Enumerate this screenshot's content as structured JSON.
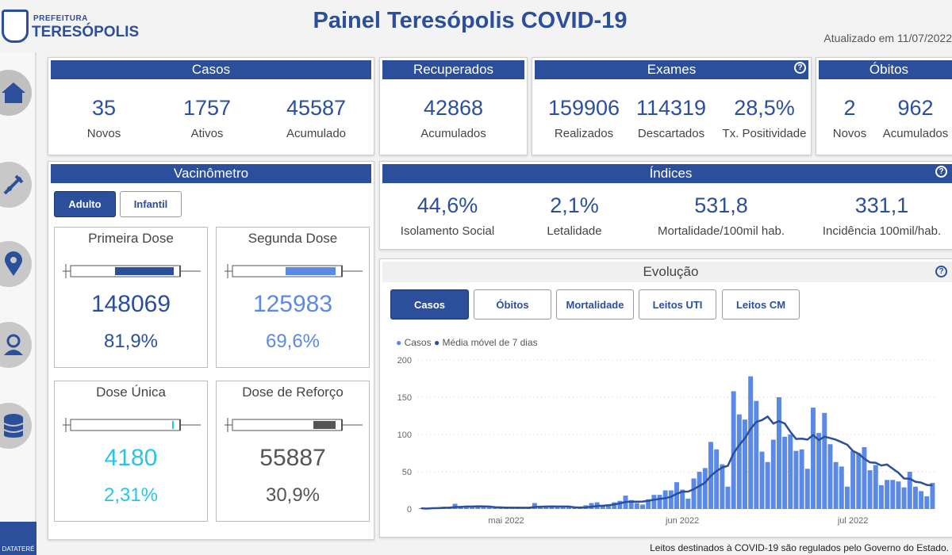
{
  "header": {
    "logo_top": "PREFEITURA",
    "logo_bottom": "TERESÓPOLIS",
    "title": "Painel Teresópolis COVID-19",
    "updated": "Atualizado em 11/07/2022"
  },
  "sidebar": {
    "items": [
      "home",
      "vaccine",
      "map",
      "attendant",
      "database"
    ],
    "footer_logo": "DATATERÉ"
  },
  "casos": {
    "title": "Casos",
    "stats": [
      {
        "value": "35",
        "label": "Novos"
      },
      {
        "value": "1757",
        "label": "Ativos"
      },
      {
        "value": "45587",
        "label": "Acumulado"
      }
    ]
  },
  "recuperados": {
    "title": "Recuperados",
    "stats": [
      {
        "value": "42868",
        "label": "Acumulados"
      }
    ]
  },
  "exames": {
    "title": "Exames",
    "help": "?",
    "stats": [
      {
        "value": "159906",
        "label": "Realizados"
      },
      {
        "value": "114319",
        "label": "Descartados"
      },
      {
        "value": "28,5%",
        "label": "Tx. Positividade"
      }
    ]
  },
  "obitos": {
    "title": "Óbitos",
    "stats": [
      {
        "value": "2",
        "label": "Novos"
      },
      {
        "value": "962",
        "label": "Acumulados"
      }
    ]
  },
  "vacinometro": {
    "title": "Vacinômetro",
    "tabs": [
      "Adulto",
      "Infantil"
    ],
    "doses": [
      {
        "title": "Primeira Dose",
        "value": "148069",
        "pct": "81,9%",
        "color": "#2b4f9b",
        "fill": 0.819
      },
      {
        "title": "Segunda Dose",
        "value": "125983",
        "pct": "69,6%",
        "color": "#5b8ae6",
        "fill": 0.696
      },
      {
        "title": "Dose Única",
        "value": "4180",
        "pct": "2,31%",
        "color": "#29c4e8",
        "fill": 0.0231
      },
      {
        "title": "Dose de Reforço",
        "value": "55887",
        "pct": "30,9%",
        "color": "#555555",
        "fill": 0.309
      }
    ]
  },
  "indices": {
    "title": "Índices",
    "help": "?",
    "stats": [
      {
        "value": "44,6%",
        "label": "Isolamento Social"
      },
      {
        "value": "2,1%",
        "label": "Letalidade"
      },
      {
        "value": "531,8",
        "label": "Mortalidade/100mil hab."
      },
      {
        "value": "331,1",
        "label": "Incidência 100mil/hab."
      }
    ]
  },
  "evolucao": {
    "title": "Evolução",
    "help": "?",
    "tabs": [
      "Casos",
      "Óbitos",
      "Mortalidade",
      "Leitos UTI",
      "Leitos CM"
    ]
  },
  "chart_data": {
    "type": "bar",
    "title": "",
    "legend": [
      "Casos",
      "Média móvel de 7 dias"
    ],
    "legend_position": "top-left",
    "series_colors": {
      "Casos": "#5b8ae6",
      "Média móvel de 7 dias": "#2b4f9b"
    },
    "start_date": "2022-04-16",
    "ylim": [
      0,
      200
    ],
    "yticks": [
      0,
      50,
      100,
      150,
      200
    ],
    "xticks": [
      {
        "label": "mai 2022",
        "day_index": 15
      },
      {
        "label": "jun 2022",
        "day_index": 46
      },
      {
        "label": "jul 2022",
        "day_index": 76
      }
    ],
    "values": [
      1,
      0,
      2,
      2,
      3,
      3,
      7,
      3,
      3,
      2,
      4,
      2,
      2,
      1,
      1,
      1,
      2,
      3,
      2,
      2,
      8,
      3,
      3,
      3,
      2,
      2,
      2,
      1,
      1,
      5,
      8,
      9,
      5,
      6,
      9,
      11,
      18,
      12,
      8,
      6,
      13,
      19,
      19,
      25,
      25,
      36,
      26,
      14,
      41,
      50,
      55,
      90,
      80,
      60,
      30,
      158,
      127,
      120,
      178,
      145,
      77,
      63,
      93,
      150,
      97,
      100,
      78,
      80,
      54,
      136,
      102,
      129,
      87,
      63,
      57,
      30,
      78,
      75,
      83,
      52,
      59,
      32,
      39,
      39,
      37,
      29,
      50,
      30,
      24,
      17,
      35
    ]
  },
  "footer": "Leitos destinados à COVID-19 são regulados pelo Governo do Estado."
}
